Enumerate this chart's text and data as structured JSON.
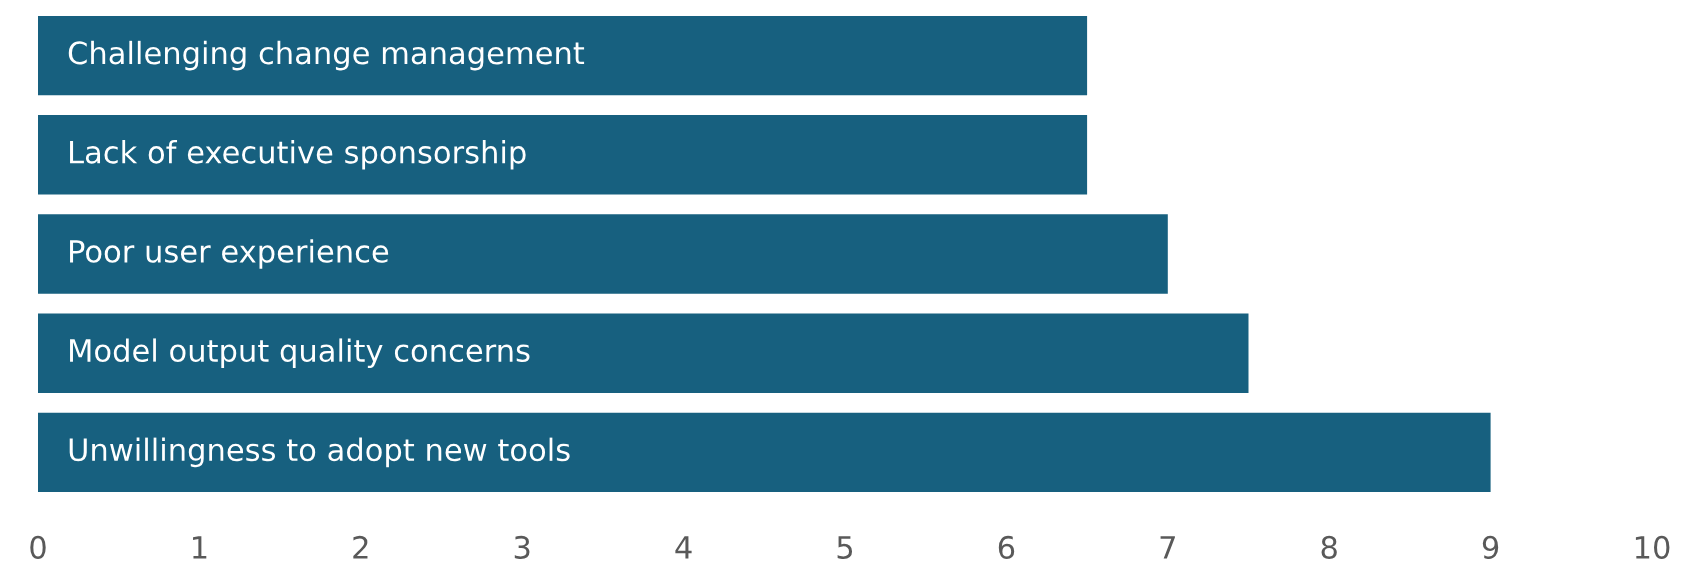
{
  "chart_data": {
    "type": "bar",
    "orientation": "horizontal",
    "categories": [
      "Challenging change management",
      "Lack of executive sponsorship",
      "Poor user experience",
      "Model output quality concerns",
      "Unwillingness to adopt new tools"
    ],
    "values": [
      6.5,
      6.5,
      7.0,
      7.5,
      9.0
    ],
    "color": "#17607f",
    "xlim": [
      0,
      10
    ],
    "xticks": [
      0,
      1,
      2,
      3,
      4,
      5,
      6,
      7,
      8,
      9,
      10
    ],
    "grid": false,
    "legend": false
  }
}
